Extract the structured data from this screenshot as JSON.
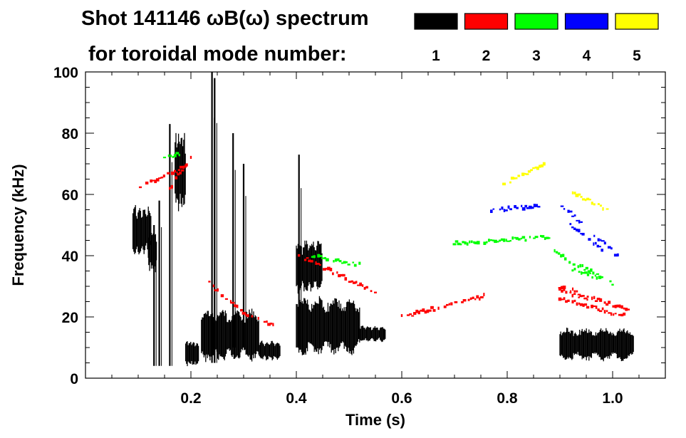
{
  "chart_data": {
    "type": "heatmap",
    "title_line1": "Shot 141146 ωB(ω) spectrum",
    "title_line2": "for toroidal mode number:",
    "xlabel": "Time (s)",
    "ylabel": "Frequency (kHz)",
    "xlim": [
      0.0,
      1.1
    ],
    "ylim": [
      0,
      100
    ],
    "x_ticks": [
      0.2,
      0.4,
      0.6,
      0.8,
      1.0
    ],
    "x_tick_labels": [
      "0.2",
      "0.4",
      "0.6",
      "0.8",
      "1.0"
    ],
    "y_ticks": [
      0,
      20,
      40,
      60,
      80,
      100
    ],
    "y_tick_labels": [
      "0",
      "20",
      "40",
      "60",
      "80",
      "100"
    ],
    "legend": [
      {
        "label": "1",
        "color": "#000000"
      },
      {
        "label": "2",
        "color": "#ff0000"
      },
      {
        "label": "3",
        "color": "#00ff00"
      },
      {
        "label": "4",
        "color": "#0000ff"
      },
      {
        "label": "5",
        "color": "#ffff00"
      }
    ],
    "series": [
      {
        "mode": "1",
        "color": "#000000",
        "regions": [
          {
            "t": [
              0.09,
              0.125
            ],
            "f": [
              40,
              56
            ]
          },
          {
            "t": [
              0.12,
              0.135
            ],
            "f": [
              35,
              48
            ]
          },
          {
            "t": [
              0.17,
              0.19
            ],
            "f": [
              55,
              80
            ]
          },
          {
            "t": [
              0.19,
              0.215
            ],
            "f": [
              4,
              12
            ]
          },
          {
            "t": [
              0.22,
              0.33
            ],
            "f": [
              6,
              22
            ]
          },
          {
            "t": [
              0.33,
              0.37
            ],
            "f": [
              6,
              12
            ]
          },
          {
            "t": [
              0.4,
              0.52
            ],
            "f": [
              8,
              26
            ]
          },
          {
            "t": [
              0.52,
              0.57
            ],
            "f": [
              12,
              17
            ]
          },
          {
            "t": [
              0.9,
              1.04
            ],
            "f": [
              6,
              16
            ]
          },
          {
            "t": [
              0.4,
              0.45
            ],
            "f": [
              28,
              45
            ]
          }
        ],
        "lines": [
          {
            "t": 0.24,
            "f": [
              5,
              100
            ]
          },
          {
            "t": 0.245,
            "f": [
              5,
              98
            ]
          },
          {
            "t": 0.28,
            "f": [
              10,
              80
            ]
          },
          {
            "t": 0.3,
            "f": [
              10,
              70
            ]
          },
          {
            "t": 0.405,
            "f": [
              10,
              73
            ]
          },
          {
            "t": 0.16,
            "f": [
              4,
              83
            ]
          },
          {
            "t": 0.14,
            "f": [
              4,
              58
            ]
          },
          {
            "t": 0.13,
            "f": [
              4,
              50
            ]
          }
        ]
      },
      {
        "mode": "2",
        "color": "#ff0000",
        "tracks": [
          {
            "t": [
              0.1,
              0.19
            ],
            "f": [
              62,
              69
            ]
          },
          {
            "t": [
              0.16,
              0.2
            ],
            "f": [
              62,
              72
            ]
          },
          {
            "t": [
              0.235,
              0.3
            ],
            "f": [
              31,
              21
            ]
          },
          {
            "t": [
              0.3,
              0.36
            ],
            "f": [
              21,
              17
            ]
          },
          {
            "t": [
              0.405,
              0.55
            ],
            "f": [
              40,
              28
            ]
          },
          {
            "t": [
              0.6,
              0.76
            ],
            "f": [
              20,
              27
            ]
          },
          {
            "t": [
              0.9,
              1.03
            ],
            "f": [
              30,
              22
            ]
          },
          {
            "t": [
              0.9,
              1.03
            ],
            "f": [
              26,
              20
            ]
          },
          {
            "t": [
              0.9,
              0.96
            ],
            "f": [
              29,
              25
            ]
          }
        ]
      },
      {
        "mode": "3",
        "color": "#00ff00",
        "tracks": [
          {
            "t": [
              0.15,
              0.19
            ],
            "f": [
              72,
              74
            ]
          },
          {
            "t": [
              0.43,
              0.52
            ],
            "f": [
              40,
              37
            ]
          },
          {
            "t": [
              0.89,
              1.0
            ],
            "f": [
              41,
              31
            ]
          },
          {
            "t": [
              0.92,
              0.97
            ],
            "f": [
              36,
              33
            ]
          },
          {
            "t": [
              0.7,
              0.88
            ],
            "f": [
              44,
              46
            ]
          }
        ]
      },
      {
        "mode": "4",
        "color": "#0000ff",
        "tracks": [
          {
            "t": [
              0.9,
              1.01
            ],
            "f": [
              57,
              40
            ]
          },
          {
            "t": [
              0.92,
              0.98
            ],
            "f": [
              50,
              42
            ]
          },
          {
            "t": [
              0.77,
              0.86
            ],
            "f": [
              55,
              56
            ]
          }
        ]
      },
      {
        "mode": "5",
        "color": "#ffff00",
        "tracks": [
          {
            "t": [
              0.79,
              0.87
            ],
            "f": [
              63,
              70
            ]
          },
          {
            "t": [
              0.92,
              0.99
            ],
            "f": [
              61,
              55
            ]
          }
        ]
      }
    ]
  }
}
